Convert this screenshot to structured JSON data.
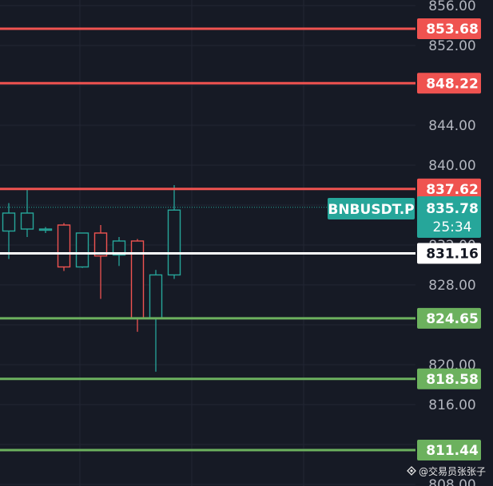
{
  "chart_data": {
    "type": "candlestick",
    "symbol": "BNBUSDT.P",
    "y_axis": {
      "range": [
        808,
        856.6
      ],
      "ticks": [
        856,
        852,
        844,
        840,
        832,
        828,
        820,
        816,
        808
      ],
      "tick_labels": [
        "856.00",
        "852.00",
        "844.00",
        "840.00",
        "832.00",
        "828.00",
        "820.00",
        "816.00",
        "808.00"
      ]
    },
    "candles": [
      {
        "open": 833.4,
        "high": 836.2,
        "low": 830.6,
        "close": 835.2
      },
      {
        "open": 833.6,
        "high": 837.6,
        "low": 832.8,
        "close": 835.2
      },
      {
        "open": 833.6,
        "high": 833.8,
        "low": 833.2,
        "close": 833.6
      },
      {
        "open": 834.0,
        "high": 834.2,
        "low": 829.4,
        "close": 829.8
      },
      {
        "open": 829.8,
        "high": 833.2,
        "low": 829.7,
        "close": 833.2
      },
      {
        "open": 833.2,
        "high": 834.0,
        "low": 826.6,
        "close": 830.9
      },
      {
        "open": 831.0,
        "high": 832.8,
        "low": 829.9,
        "close": 832.4
      },
      {
        "open": 832.4,
        "high": 832.6,
        "low": 823.3,
        "close": 824.7
      },
      {
        "open": 824.7,
        "high": 829.5,
        "low": 819.3,
        "close": 829.0
      },
      {
        "open": 829.0,
        "high": 838.0,
        "low": 828.6,
        "close": 835.5
      }
    ],
    "price_levels": [
      {
        "label": "853.68",
        "value": 853.68,
        "color": "#ef5350",
        "text_color": "#ffffff"
      },
      {
        "label": "848.22",
        "value": 848.22,
        "color": "#ef5350",
        "text_color": "#ffffff"
      },
      {
        "label": "837.62",
        "value": 837.62,
        "color": "#ef5350",
        "text_color": "#ffffff"
      },
      {
        "label": "831.16",
        "value": 831.16,
        "color": "#ffffff",
        "text_color": "#131722"
      },
      {
        "label": "824.65",
        "value": 824.65,
        "color": "#6cb15e",
        "text_color": "#ffffff"
      },
      {
        "label": "818.58",
        "value": 818.58,
        "color": "#6cb15e",
        "text_color": "#ffffff"
      },
      {
        "label": "811.44",
        "value": 811.44,
        "color": "#6cb15e",
        "text_color": "#ffffff"
      }
    ],
    "current_price": {
      "label": "835.78",
      "value": 835.78,
      "countdown": "25:34",
      "color": "#26a69a"
    },
    "colors": {
      "up": "#26a69a",
      "down": "#ef5350",
      "background": "#161a25",
      "grid": "#222634"
    },
    "grid": true
  },
  "watermark": "@交易员张张子"
}
